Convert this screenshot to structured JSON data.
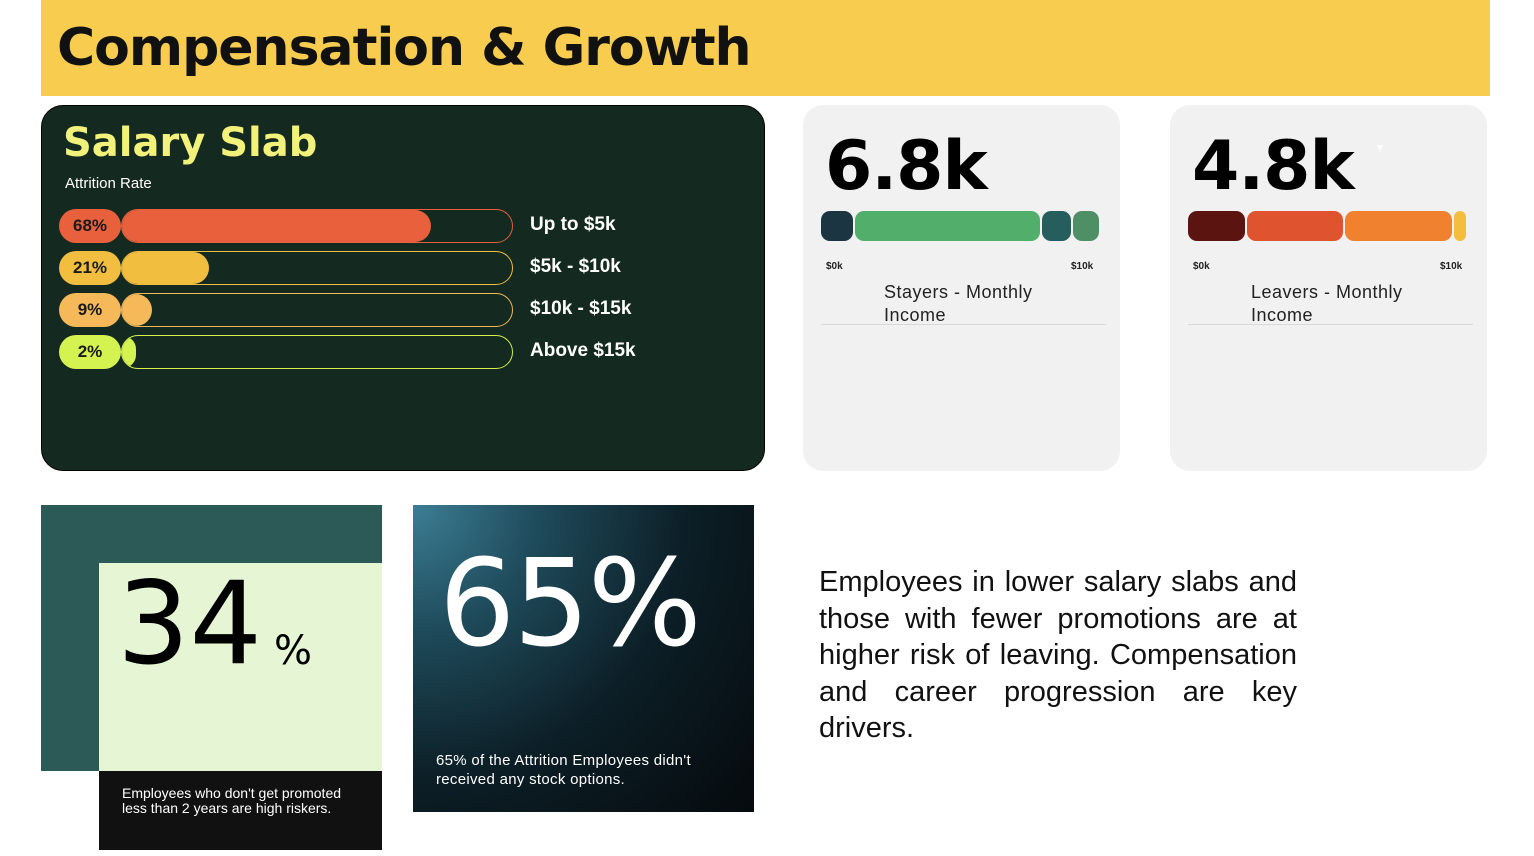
{
  "header": {
    "title": "Compensation & Growth"
  },
  "salary_slab": {
    "title": "Salary Slab",
    "subtitle": "Attrition Rate"
  },
  "chart_data": [
    {
      "type": "bar",
      "title": "Salary Slab",
      "subtitle": "Attrition Rate",
      "categories": [
        "Up to $5k",
        "$5k - $10k",
        "$10k - $15k",
        "Above $15k"
      ],
      "labels": [
        "68%",
        "21%",
        "9%",
        "2%"
      ],
      "values": [
        68,
        21,
        9,
        2
      ],
      "colors": [
        "#E8603C",
        "#F2BE3F",
        "#F5B95A",
        "#D4F250"
      ],
      "xlim": [
        0,
        100
      ]
    }
  ],
  "stayers": {
    "value": "6.8k",
    "tick_min": "$0k",
    "tick_max": "$10k",
    "caption": "Stayers - Monthly Income",
    "segments": [
      {
        "from": 0,
        "to": 1.2,
        "color": "#1B3542"
      },
      {
        "from": 1.2,
        "to": 7.9,
        "color": "#52AE6B"
      },
      {
        "from": 7.9,
        "to": 9.0,
        "color": "#255E5C"
      },
      {
        "from": 9.0,
        "to": 10,
        "color": "#4E8F66"
      }
    ]
  },
  "leavers": {
    "value": "4.8k",
    "tick_min": "$0k",
    "tick_max": "$10k",
    "caption": "Leavers - Monthly Income",
    "segments": [
      {
        "from": 0,
        "to": 2.1,
        "color": "#5C1410"
      },
      {
        "from": 2.1,
        "to": 5.6,
        "color": "#E0532F"
      },
      {
        "from": 5.6,
        "to": 9.5,
        "color": "#F0812E"
      },
      {
        "from": 9.5,
        "to": 10,
        "color": "#F5BD3E"
      }
    ]
  },
  "promotion": {
    "number": "34",
    "unit": "%",
    "text": "Employees who don't get promoted less than 2 years are high riskers."
  },
  "stock": {
    "number": "65%",
    "text": "65% of the Attrition Employees didn't received any stock options."
  },
  "summary": {
    "text": "Employees in lower salary slabs and those with fewer promotions are at higher risk of leaving. Compensation and career progression are key drivers."
  }
}
